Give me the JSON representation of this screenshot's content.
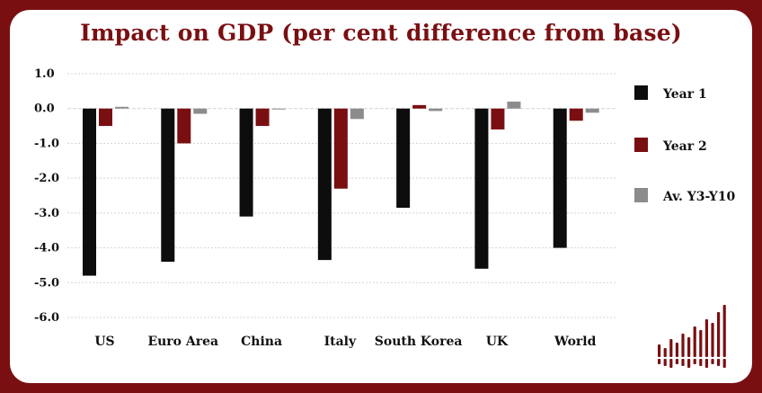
{
  "colors": {
    "frame": "#7a0f12",
    "year1": "#0d0d0d",
    "year2": "#7a0f12",
    "avg": "#8c8c8c",
    "grid": "#d4d4d4"
  },
  "logo": "bar-chart-logo-icon",
  "chart_data": {
    "type": "bar",
    "title": "Impact on GDP (per cent difference from base)",
    "xlabel": "",
    "ylabel": "",
    "ylim": [
      -6.0,
      1.0
    ],
    "yticks": [
      "1.0",
      "0.0",
      "-1.0",
      "-2.0",
      "-3.0",
      "-4.0",
      "-5.0",
      "-6.0"
    ],
    "grid": true,
    "legend_position": "right",
    "categories": [
      "US",
      "Euro Area",
      "China",
      "Italy",
      "South Korea",
      "UK",
      "World"
    ],
    "series": [
      {
        "name": "Year 1",
        "values": [
          -4.8,
          -4.4,
          -3.1,
          -4.35,
          -2.85,
          -4.6,
          -4.0
        ]
      },
      {
        "name": "Year 2",
        "values": [
          -0.5,
          -1.0,
          -0.5,
          -2.3,
          0.1,
          -0.6,
          -0.35
        ]
      },
      {
        "name": "Av. Y3-Y10",
        "values": [
          0.05,
          -0.15,
          -0.02,
          -0.3,
          -0.07,
          0.2,
          -0.12
        ]
      }
    ]
  }
}
